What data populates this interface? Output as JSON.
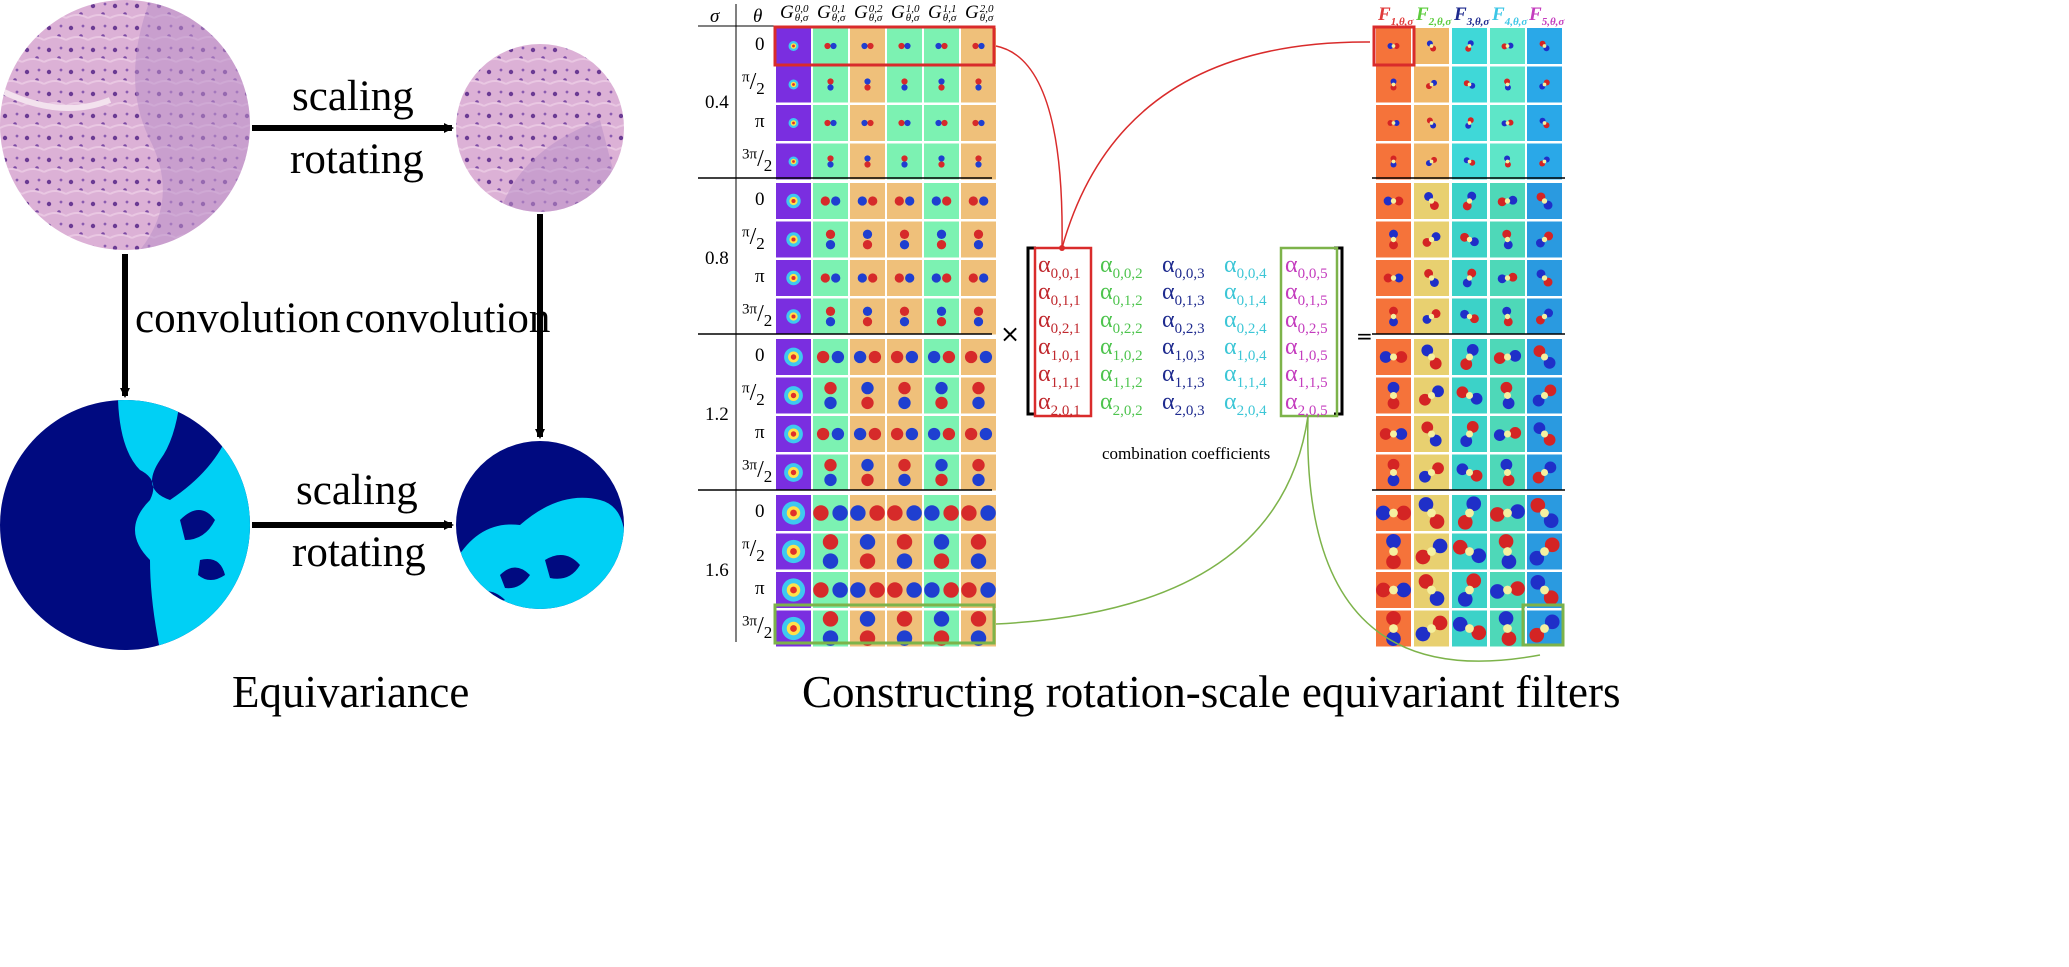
{
  "left_panel": {
    "top_arrow": {
      "line1": "scaling",
      "line2": "rotating"
    },
    "bottom_arrow": {
      "line1": "scaling",
      "line2": "rotating"
    },
    "left_down_label": "convolution",
    "right_down_label": "convolution",
    "caption": "Equivariance"
  },
  "grid": {
    "sigma_header": "σ",
    "theta_header": "θ",
    "basis_headers": [
      {
        "base": "G",
        "sup": "0,0",
        "sub": "θ,σ"
      },
      {
        "base": "G",
        "sup": "0,1",
        "sub": "θ,σ"
      },
      {
        "base": "G",
        "sup": "0,2",
        "sub": "θ,σ"
      },
      {
        "base": "G",
        "sup": "1,0",
        "sub": "θ,σ"
      },
      {
        "base": "G",
        "sup": "1,1",
        "sub": "θ,σ"
      },
      {
        "base": "G",
        "sup": "2,0",
        "sub": "θ,σ"
      }
    ],
    "sigmas": [
      "0.4",
      "0.8",
      "1.2",
      "1.6"
    ],
    "thetas": [
      {
        "main": "0",
        "num": "",
        "den": ""
      },
      {
        "main": "",
        "num": "π",
        "den": "2"
      },
      {
        "main": "π",
        "num": "",
        "den": ""
      },
      {
        "main": "",
        "num": "3π",
        "den": "2"
      }
    ]
  },
  "matrix": {
    "times": "×",
    "equals": "=",
    "caption": "combination coefficients",
    "columns": [
      {
        "color": "#c0282e",
        "entries": [
          {
            "a": "α",
            "sub": "0,0,1"
          },
          {
            "a": "α",
            "sub": "0,1,1"
          },
          {
            "a": "α",
            "sub": "0,2,1"
          },
          {
            "a": "α",
            "sub": "1,0,1"
          },
          {
            "a": "α",
            "sub": "1,1,1"
          },
          {
            "a": "α",
            "sub": "2,0,1"
          }
        ]
      },
      {
        "color": "#4ec44e",
        "entries": [
          {
            "a": "α",
            "sub": "0,0,2"
          },
          {
            "a": "α",
            "sub": "0,1,2"
          },
          {
            "a": "α",
            "sub": "0,2,2"
          },
          {
            "a": "α",
            "sub": "1,0,2"
          },
          {
            "a": "α",
            "sub": "1,1,2"
          },
          {
            "a": "α",
            "sub": "2,0,2"
          }
        ]
      },
      {
        "color": "#1e2a8e",
        "entries": [
          {
            "a": "α",
            "sub": "0,0,3"
          },
          {
            "a": "α",
            "sub": "0,1,3"
          },
          {
            "a": "α",
            "sub": "0,2,3"
          },
          {
            "a": "α",
            "sub": "1,0,3"
          },
          {
            "a": "α",
            "sub": "1,1,3"
          },
          {
            "a": "α",
            "sub": "2,0,3"
          }
        ]
      },
      {
        "color": "#3cc6d6",
        "entries": [
          {
            "a": "α",
            "sub": "0,0,4"
          },
          {
            "a": "α",
            "sub": "0,1,4"
          },
          {
            "a": "α",
            "sub": "0,2,4"
          },
          {
            "a": "α",
            "sub": "1,0,4"
          },
          {
            "a": "α",
            "sub": "1,1,4"
          },
          {
            "a": "α",
            "sub": "2,0,4"
          }
        ]
      },
      {
        "color": "#c43cbe",
        "entries": [
          {
            "a": "α",
            "sub": "0,0,5"
          },
          {
            "a": "α",
            "sub": "0,1,5"
          },
          {
            "a": "α",
            "sub": "0,2,5"
          },
          {
            "a": "α",
            "sub": "1,0,5"
          },
          {
            "a": "α",
            "sub": "1,1,5"
          },
          {
            "a": "α",
            "sub": "2,0,5"
          }
        ]
      }
    ]
  },
  "filters": {
    "headers": [
      {
        "base": "F",
        "sub": "1,θ,σ",
        "color": "#e03a3a"
      },
      {
        "base": "F",
        "sub": "2,θ,σ",
        "color": "#5ccc3c"
      },
      {
        "base": "F",
        "sub": "3,θ,σ",
        "color": "#1e2a8e"
      },
      {
        "base": "F",
        "sub": "4,θ,σ",
        "color": "#3cc6e6"
      },
      {
        "base": "F",
        "sub": "5,θ,σ",
        "color": "#c43cbe"
      }
    ]
  },
  "right_caption": "Constructing rotation-scale equivariant filters",
  "colors": {
    "navy": "#000a80",
    "cyan": "#00d0f5",
    "tissue": "#d8a8d4",
    "highlight_red": "#d92b2b",
    "highlight_green": "#7db34a"
  }
}
